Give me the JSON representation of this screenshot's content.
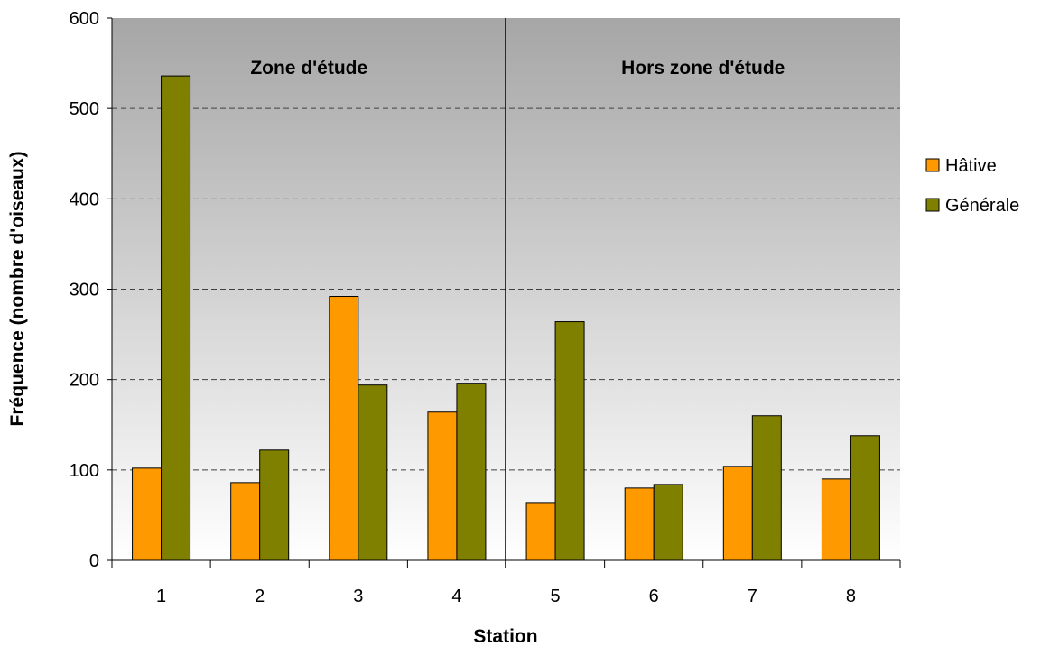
{
  "chart_data": {
    "type": "bar",
    "categories": [
      "1",
      "2",
      "3",
      "4",
      "5",
      "6",
      "7",
      "8"
    ],
    "series": [
      {
        "name": "Hâtive",
        "color": "#ff9900",
        "values": [
          102,
          86,
          292,
          164,
          64,
          80,
          104,
          90
        ]
      },
      {
        "name": "Générale",
        "color": "#808000",
        "values": [
          536,
          122,
          194,
          196,
          264,
          84,
          160,
          138
        ]
      }
    ],
    "xlabel": "Station",
    "ylabel": "Fréquence (nombre d'oiseaux)",
    "ylim": [
      0,
      600
    ],
    "yticks": [
      "0",
      "100",
      "200",
      "300",
      "400",
      "500",
      "600"
    ],
    "grid": true,
    "legend_position": "right",
    "regions": [
      {
        "label": "Zone d'étude",
        "categories": [
          "1",
          "2",
          "3",
          "4"
        ]
      },
      {
        "label": "Hors zone d'étude",
        "categories": [
          "5",
          "6",
          "7",
          "8"
        ]
      }
    ],
    "background_gradient": [
      "#a6a6a6",
      "#ffffff"
    ]
  }
}
